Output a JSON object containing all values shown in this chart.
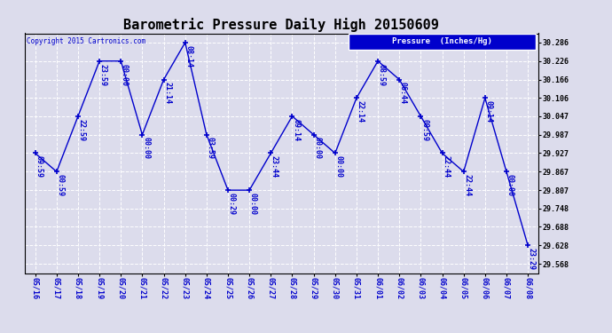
{
  "title": "Barometric Pressure Daily High 20150609",
  "copyright": "Copyright 2015 Cartronics.com",
  "legend_label": "Pressure  (Inches/Hg)",
  "x_labels": [
    "05/16",
    "05/17",
    "05/18",
    "05/19",
    "05/20",
    "05/21",
    "05/22",
    "05/23",
    "05/24",
    "05/25",
    "05/26",
    "05/27",
    "05/28",
    "05/29",
    "05/30",
    "05/31",
    "06/01",
    "06/02",
    "06/03",
    "06/04",
    "06/05",
    "06/06",
    "06/07",
    "06/08"
  ],
  "y_values": [
    29.927,
    29.867,
    30.047,
    30.226,
    30.226,
    29.987,
    30.166,
    30.286,
    29.987,
    29.807,
    29.807,
    29.927,
    30.047,
    29.987,
    29.927,
    30.106,
    30.226,
    30.166,
    30.047,
    29.927,
    29.867,
    30.106,
    29.867,
    29.628
  ],
  "point_labels": [
    "09:59",
    "00:59",
    "22:59",
    "23:59",
    "00:00",
    "00:00",
    "21:14",
    "08:14",
    "03:59",
    "00:29",
    "00:00",
    "23:44",
    "09:14",
    "00:00",
    "00:00",
    "22:14",
    "08:59",
    "06:44",
    "00:59",
    "22:44",
    "22:44",
    "09:14",
    "00:00",
    "23:29"
  ],
  "y_ticks": [
    29.568,
    29.628,
    29.688,
    29.748,
    29.807,
    29.867,
    29.927,
    29.987,
    30.047,
    30.106,
    30.166,
    30.226,
    30.286
  ],
  "ylim_min": 29.538,
  "ylim_max": 30.316,
  "line_color": "#0000cc",
  "bg_color": "#dcdcec",
  "grid_color": "#ffffff",
  "title_fontsize": 11,
  "tick_fontsize": 6,
  "annot_fontsize": 6
}
